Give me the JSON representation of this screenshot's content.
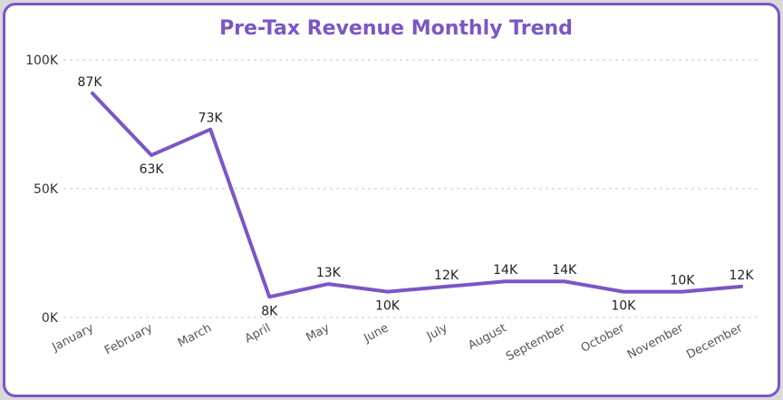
{
  "chart_data": {
    "type": "line",
    "title": "Pre-Tax Revenue Monthly Trend",
    "categories": [
      "January",
      "February",
      "March",
      "April",
      "May",
      "June",
      "July",
      "August",
      "September",
      "October",
      "November",
      "December"
    ],
    "series": [
      {
        "values": [
          87000,
          63000,
          73000,
          8000,
          13000,
          10000,
          12000,
          14000,
          14000,
          10000,
          10000,
          12000
        ],
        "labels": [
          "87K",
          "63K",
          "73K",
          "8K",
          "13K",
          "10K",
          "12K",
          "14K",
          "14K",
          "10K",
          "10K",
          "12K"
        ]
      }
    ],
    "ylim": [
      0,
      100000
    ],
    "yticks": [
      {
        "value": 0,
        "label": "0K"
      },
      {
        "value": 50000,
        "label": "50K"
      },
      {
        "value": 100000,
        "label": "100K"
      }
    ],
    "grid": true,
    "line_color": "#7b56c6"
  }
}
